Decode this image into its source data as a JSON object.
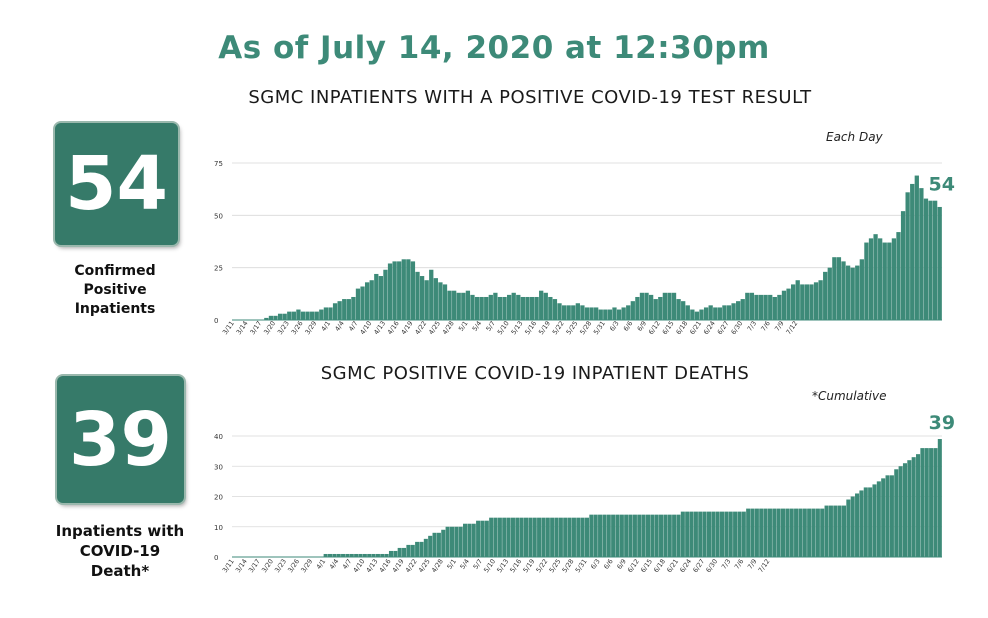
{
  "headline": "As of July 14, 2020 at 12:30pm",
  "colors": {
    "accent": "#367a69",
    "bar": "#3d8a78",
    "text": "#1a1a1a"
  },
  "panels": [
    {
      "big_number": "54",
      "label_lines": [
        "Confirmed",
        "Positive",
        "Inpatients"
      ]
    },
    {
      "big_number": "39",
      "label_lines": [
        "Inpatients with",
        "COVID-19",
        "Death*"
      ]
    }
  ],
  "chart_data": [
    {
      "type": "bar",
      "title": "SGMC INPATIENTS WITH A POSITIVE COVID-19 TEST RESULT",
      "note": "Each Day",
      "end_label": "54",
      "ylim": [
        0,
        75
      ],
      "yticks": [
        "0",
        "25",
        "50",
        "75"
      ],
      "grid": true,
      "tick_labels": [
        "3/11",
        "3/14",
        "3/17",
        "3/20",
        "3/23",
        "3/26",
        "3/29",
        "4/1",
        "4/4",
        "4/7",
        "4/10",
        "4/13",
        "4/16",
        "4/19",
        "4/22",
        "4/25",
        "4/28",
        "5/1",
        "5/4",
        "5/7",
        "5/10",
        "5/13",
        "5/16",
        "5/19",
        "5/22",
        "5/25",
        "5/28",
        "5/31",
        "6/3",
        "6/6",
        "6/9",
        "6/12",
        "6/15",
        "6/18",
        "6/21",
        "6/24",
        "6/27",
        "6/30",
        "7/3",
        "7/6",
        "7/9",
        "7/12"
      ],
      "start_date": "3/11",
      "values": [
        0,
        0,
        0,
        0,
        0,
        0,
        0,
        1,
        2,
        2,
        3,
        3,
        4,
        4,
        5,
        4,
        4,
        4,
        4,
        5,
        6,
        6,
        8,
        9,
        10,
        10,
        11,
        15,
        16,
        18,
        19,
        22,
        21,
        24,
        27,
        28,
        28,
        29,
        29,
        28,
        23,
        21,
        19,
        24,
        20,
        18,
        17,
        14,
        14,
        13,
        13,
        14,
        12,
        11,
        11,
        11,
        12,
        13,
        11,
        11,
        12,
        13,
        12,
        11,
        11,
        11,
        11,
        14,
        13,
        11,
        10,
        8,
        7,
        7,
        7,
        8,
        7,
        6,
        6,
        6,
        5,
        5,
        5,
        6,
        5,
        6,
        7,
        9,
        11,
        13,
        13,
        12,
        10,
        11,
        13,
        13,
        13,
        10,
        9,
        7,
        5,
        4,
        5,
        6,
        7,
        6,
        6,
        7,
        7,
        8,
        9,
        10,
        13,
        13,
        12,
        12,
        12,
        12,
        11,
        12,
        14,
        15,
        17,
        19,
        17,
        17,
        17,
        18,
        19,
        23,
        25,
        30,
        30,
        28,
        26,
        25,
        26,
        29,
        37,
        39,
        41,
        39,
        37,
        37,
        39,
        42,
        52,
        61,
        65,
        69,
        63,
        58,
        57,
        57,
        54
      ]
    },
    {
      "type": "bar",
      "title": "SGMC POSITIVE COVID-19 INPATIENT DEATHS",
      "note": "*Cumulative",
      "end_label": "39",
      "ylim": [
        0,
        40
      ],
      "yticks": [
        "0",
        "10",
        "20",
        "30",
        "40"
      ],
      "grid": true,
      "tick_labels": [
        "3/11",
        "3/14",
        "3/17",
        "3/20",
        "3/23",
        "3/26",
        "3/29",
        "4/1",
        "4/4",
        "4/7",
        "4/10",
        "4/13",
        "4/16",
        "4/19",
        "4/22",
        "4/25",
        "4/28",
        "5/1",
        "5/4",
        "5/7",
        "5/10",
        "5/13",
        "5/16",
        "5/19",
        "5/22",
        "5/25",
        "5/28",
        "5/31",
        "6/3",
        "6/6",
        "6/9",
        "6/12",
        "6/15",
        "6/18",
        "6/21",
        "6/24",
        "6/27",
        "6/30",
        "7/3",
        "7/6",
        "7/9",
        "7/12"
      ],
      "start_date": "3/11",
      "values": [
        0,
        0,
        0,
        0,
        0,
        0,
        0,
        0,
        0,
        0,
        0,
        0,
        0,
        0,
        0,
        0,
        0,
        0,
        0,
        0,
        0,
        1,
        1,
        1,
        1,
        1,
        1,
        1,
        1,
        1,
        1,
        1,
        1,
        1,
        1,
        1,
        2,
        2,
        3,
        3,
        4,
        4,
        5,
        5,
        6,
        7,
        8,
        8,
        9,
        10,
        10,
        10,
        10,
        11,
        11,
        11,
        12,
        12,
        12,
        13,
        13,
        13,
        13,
        13,
        13,
        13,
        13,
        13,
        13,
        13,
        13,
        13,
        13,
        13,
        13,
        13,
        13,
        13,
        13,
        13,
        13,
        13,
        14,
        14,
        14,
        14,
        14,
        14,
        14,
        14,
        14,
        14,
        14,
        14,
        14,
        14,
        14,
        14,
        14,
        14,
        14,
        14,
        14,
        15,
        15,
        15,
        15,
        15,
        15,
        15,
        15,
        15,
        15,
        15,
        15,
        15,
        15,
        15,
        16,
        16,
        16,
        16,
        16,
        16,
        16,
        16,
        16,
        16,
        16,
        16,
        16,
        16,
        16,
        16,
        16,
        16,
        17,
        17,
        17,
        17,
        17,
        19,
        20,
        21,
        22,
        23,
        23,
        24,
        25,
        26,
        27,
        27,
        29,
        30,
        31,
        32,
        33,
        34,
        36,
        36,
        36,
        36,
        39
      ]
    }
  ]
}
